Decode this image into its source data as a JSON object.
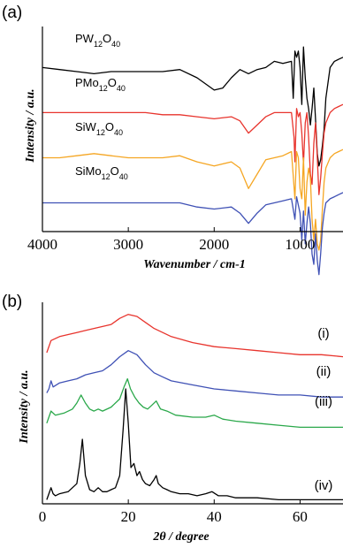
{
  "chart_data": [
    {
      "panel": "(a)",
      "type": "line",
      "xlabel": "Wavenumber / cm-1",
      "ylabel": "Intensity / a.u.",
      "xlim": [
        4000,
        500
      ],
      "ticks": [
        "4000",
        "3000",
        "2000",
        "1000"
      ],
      "tick_values": [
        4000,
        3000,
        2000,
        1000
      ],
      "series": [
        {
          "name": "PW12O40",
          "label_main": "PW",
          "label_sub1": "12",
          "label_o": "O",
          "label_sub2": "40",
          "color": "#000000",
          "offset": 0.8,
          "x": [
            4000,
            3800,
            3600,
            3400,
            3200,
            3000,
            2800,
            2600,
            2400,
            2200,
            2000,
            1900,
            1800,
            1700,
            1600,
            1500,
            1400,
            1300,
            1200,
            1100,
            1080,
            1060,
            1040,
            1020,
            1000,
            980,
            960,
            940,
            920,
            900,
            880,
            860,
            840,
            820,
            800,
            780,
            760,
            740,
            720,
            700,
            650,
            600,
            550,
            500
          ],
          "y": [
            0.0,
            -0.01,
            -0.02,
            -0.03,
            -0.02,
            -0.02,
            -0.02,
            -0.02,
            -0.01,
            -0.05,
            -0.11,
            -0.1,
            -0.05,
            -0.01,
            -0.03,
            -0.01,
            0.0,
            0.03,
            0.02,
            0.03,
            -0.15,
            0.08,
            0.05,
            0.08,
            0.0,
            -0.18,
            0.1,
            -0.05,
            -0.15,
            -0.2,
            -0.28,
            -0.2,
            -0.1,
            -0.25,
            -0.42,
            -0.48,
            -0.45,
            -0.38,
            -0.3,
            -0.15,
            0.0,
            0.03,
            0.04,
            0.05
          ]
        },
        {
          "name": "PMo12O40",
          "label_main": "PMo",
          "label_sub1": "12",
          "label_o": "O",
          "label_sub2": "40",
          "color": "#e8342d",
          "offset": 0.58,
          "x": [
            4000,
            3800,
            3600,
            3400,
            3200,
            3000,
            2800,
            2600,
            2400,
            2200,
            2000,
            1800,
            1700,
            1600,
            1500,
            1400,
            1300,
            1200,
            1100,
            1070,
            1060,
            1040,
            1020,
            1000,
            980,
            960,
            940,
            920,
            900,
            880,
            860,
            840,
            820,
            800,
            780,
            760,
            740,
            720,
            700,
            650,
            600,
            550,
            500
          ],
          "y": [
            0.0,
            0.0,
            0.0,
            0.0,
            0.0,
            0.0,
            0.0,
            -0.01,
            -0.01,
            -0.02,
            -0.03,
            -0.02,
            -0.04,
            -0.1,
            -0.06,
            -0.02,
            0.0,
            0.0,
            0.0,
            -0.12,
            -0.24,
            0.02,
            -0.02,
            0.0,
            -0.1,
            -0.25,
            -0.05,
            0.0,
            -0.12,
            -0.3,
            -0.35,
            -0.15,
            -0.05,
            -0.22,
            -0.4,
            -0.32,
            -0.2,
            -0.1,
            -0.05,
            0.0,
            0.02,
            0.03,
            0.04
          ]
        },
        {
          "name": "SiW12O40",
          "label_main": "SiW",
          "label_sub1": "12",
          "label_o": "O",
          "label_sub2": "40",
          "color": "#f5a623",
          "offset": 0.36,
          "x": [
            4000,
            3800,
            3600,
            3400,
            3200,
            3000,
            2800,
            2600,
            2400,
            2200,
            2000,
            1800,
            1700,
            1600,
            1500,
            1400,
            1300,
            1200,
            1100,
            1060,
            1040,
            1020,
            1000,
            980,
            960,
            940,
            920,
            900,
            880,
            860,
            840,
            820,
            800,
            780,
            760,
            740,
            720,
            700,
            650,
            600,
            550,
            500
          ],
          "y": [
            0.0,
            0.0,
            0.01,
            0.02,
            0.01,
            0.0,
            0.0,
            0.0,
            0.01,
            -0.02,
            -0.04,
            -0.02,
            -0.05,
            -0.15,
            -0.08,
            -0.01,
            0.0,
            0.01,
            0.03,
            -0.2,
            0.03,
            0.0,
            -0.15,
            -0.2,
            0.0,
            -0.28,
            -0.12,
            -0.05,
            -0.1,
            -0.3,
            -0.4,
            -0.3,
            -0.42,
            -0.45,
            -0.4,
            -0.25,
            -0.12,
            -0.05,
            0.0,
            0.02,
            0.03,
            0.04
          ]
        },
        {
          "name": "SiMo12O40",
          "label_main": "SiMo",
          "label_sub1": "12",
          "label_o": "O",
          "label_sub2": "40",
          "color": "#3f51b5",
          "offset": 0.14,
          "x": [
            4000,
            3800,
            3600,
            3400,
            3200,
            3000,
            2800,
            2600,
            2400,
            2200,
            2000,
            1800,
            1700,
            1600,
            1500,
            1400,
            1300,
            1200,
            1100,
            1060,
            1040,
            1000,
            980,
            960,
            940,
            920,
            900,
            880,
            860,
            840,
            820,
            800,
            780,
            760,
            740,
            720,
            700,
            650,
            600,
            550,
            500
          ],
          "y": [
            0.0,
            0.0,
            0.0,
            0.0,
            0.0,
            0.0,
            0.0,
            0.0,
            0.0,
            -0.02,
            -0.03,
            -0.02,
            -0.05,
            -0.1,
            -0.05,
            -0.01,
            0.0,
            0.01,
            0.02,
            -0.08,
            0.03,
            -0.05,
            -0.18,
            -0.04,
            -0.2,
            -0.1,
            -0.02,
            -0.1,
            -0.25,
            -0.3,
            -0.15,
            -0.28,
            -0.35,
            -0.25,
            -0.12,
            -0.05,
            0.0,
            0.02,
            0.03,
            0.04,
            0.05
          ]
        }
      ]
    },
    {
      "panel": "(b)",
      "type": "line",
      "xlabel": "2θ / degree",
      "ylabel": "Intensity / a.u.",
      "xlim": [
        0,
        70
      ],
      "ticks": [
        "0",
        "20",
        "40",
        "60"
      ],
      "tick_values": [
        0,
        20,
        40,
        60
      ],
      "series": [
        {
          "name": "(i)",
          "color": "#e8342d",
          "offset": 0.75,
          "x": [
            1,
            2,
            4,
            6,
            8,
            10,
            12,
            14,
            16,
            18,
            20,
            22,
            24,
            26,
            28,
            30,
            35,
            40,
            45,
            50,
            55,
            60,
            65,
            70
          ],
          "y": [
            0.0,
            0.06,
            0.08,
            0.09,
            0.1,
            0.11,
            0.12,
            0.13,
            0.14,
            0.17,
            0.19,
            0.18,
            0.15,
            0.12,
            0.1,
            0.08,
            0.05,
            0.03,
            0.02,
            0.01,
            0.0,
            -0.01,
            -0.01,
            -0.02
          ]
        },
        {
          "name": "(ii)",
          "color": "#3f51b5",
          "offset": 0.55,
          "x": [
            1,
            1.5,
            2,
            2.5,
            4,
            6,
            8,
            10,
            12,
            14,
            16,
            18,
            20,
            22,
            24,
            26,
            28,
            30,
            35,
            40,
            45,
            50,
            55,
            60,
            65,
            70
          ],
          "y": [
            0.0,
            0.02,
            0.06,
            0.03,
            0.05,
            0.06,
            0.07,
            0.09,
            0.1,
            0.11,
            0.14,
            0.18,
            0.21,
            0.19,
            0.14,
            0.1,
            0.08,
            0.06,
            0.04,
            0.02,
            0.01,
            0.0,
            -0.01,
            -0.01,
            -0.02,
            -0.02
          ]
        },
        {
          "name": "(iii)",
          "color": "#2aa84a",
          "offset": 0.4,
          "x": [
            1,
            2,
            3,
            5,
            7,
            8,
            9,
            10,
            11,
            12,
            13,
            14,
            16,
            18,
            19,
            19.8,
            20.5,
            21.5,
            22.5,
            23.5,
            24.5,
            25.5,
            26.5,
            27.5,
            29,
            31,
            35,
            38,
            40,
            42,
            45,
            50,
            55,
            60,
            65,
            70
          ],
          "y": [
            0.0,
            0.06,
            0.04,
            0.05,
            0.07,
            0.1,
            0.14,
            0.1,
            0.07,
            0.06,
            0.07,
            0.06,
            0.08,
            0.12,
            0.18,
            0.22,
            0.17,
            0.13,
            0.1,
            0.08,
            0.07,
            0.09,
            0.11,
            0.07,
            0.06,
            0.04,
            0.03,
            0.03,
            0.04,
            0.02,
            0.01,
            0.0,
            -0.01,
            -0.02,
            -0.02,
            -0.02
          ]
        },
        {
          "name": "(iv)",
          "color": "#000000",
          "offset": 0.02,
          "x": [
            1,
            1.5,
            2,
            2.5,
            3,
            4,
            6,
            8,
            8.7,
            9.3,
            10,
            11,
            12,
            13,
            14,
            15,
            16,
            17,
            18,
            18.8,
            19.4,
            20,
            20.6,
            21.3,
            22,
            22.6,
            23.3,
            24,
            25,
            26,
            26.5,
            27,
            28,
            29,
            30,
            32,
            34,
            36,
            38,
            39.5,
            41,
            43,
            45,
            50,
            55,
            60,
            65,
            70
          ],
          "y": [
            0.0,
            0.03,
            0.06,
            0.03,
            0.02,
            0.03,
            0.04,
            0.08,
            0.18,
            0.3,
            0.12,
            0.05,
            0.04,
            0.06,
            0.04,
            0.04,
            0.05,
            0.06,
            0.12,
            0.35,
            0.55,
            0.38,
            0.16,
            0.18,
            0.12,
            0.14,
            0.1,
            0.08,
            0.07,
            0.1,
            0.12,
            0.08,
            0.06,
            0.05,
            0.04,
            0.03,
            0.03,
            0.02,
            0.03,
            0.04,
            0.02,
            0.02,
            0.01,
            0.01,
            0.0,
            0.0,
            0.0,
            0.0
          ]
        }
      ]
    }
  ]
}
